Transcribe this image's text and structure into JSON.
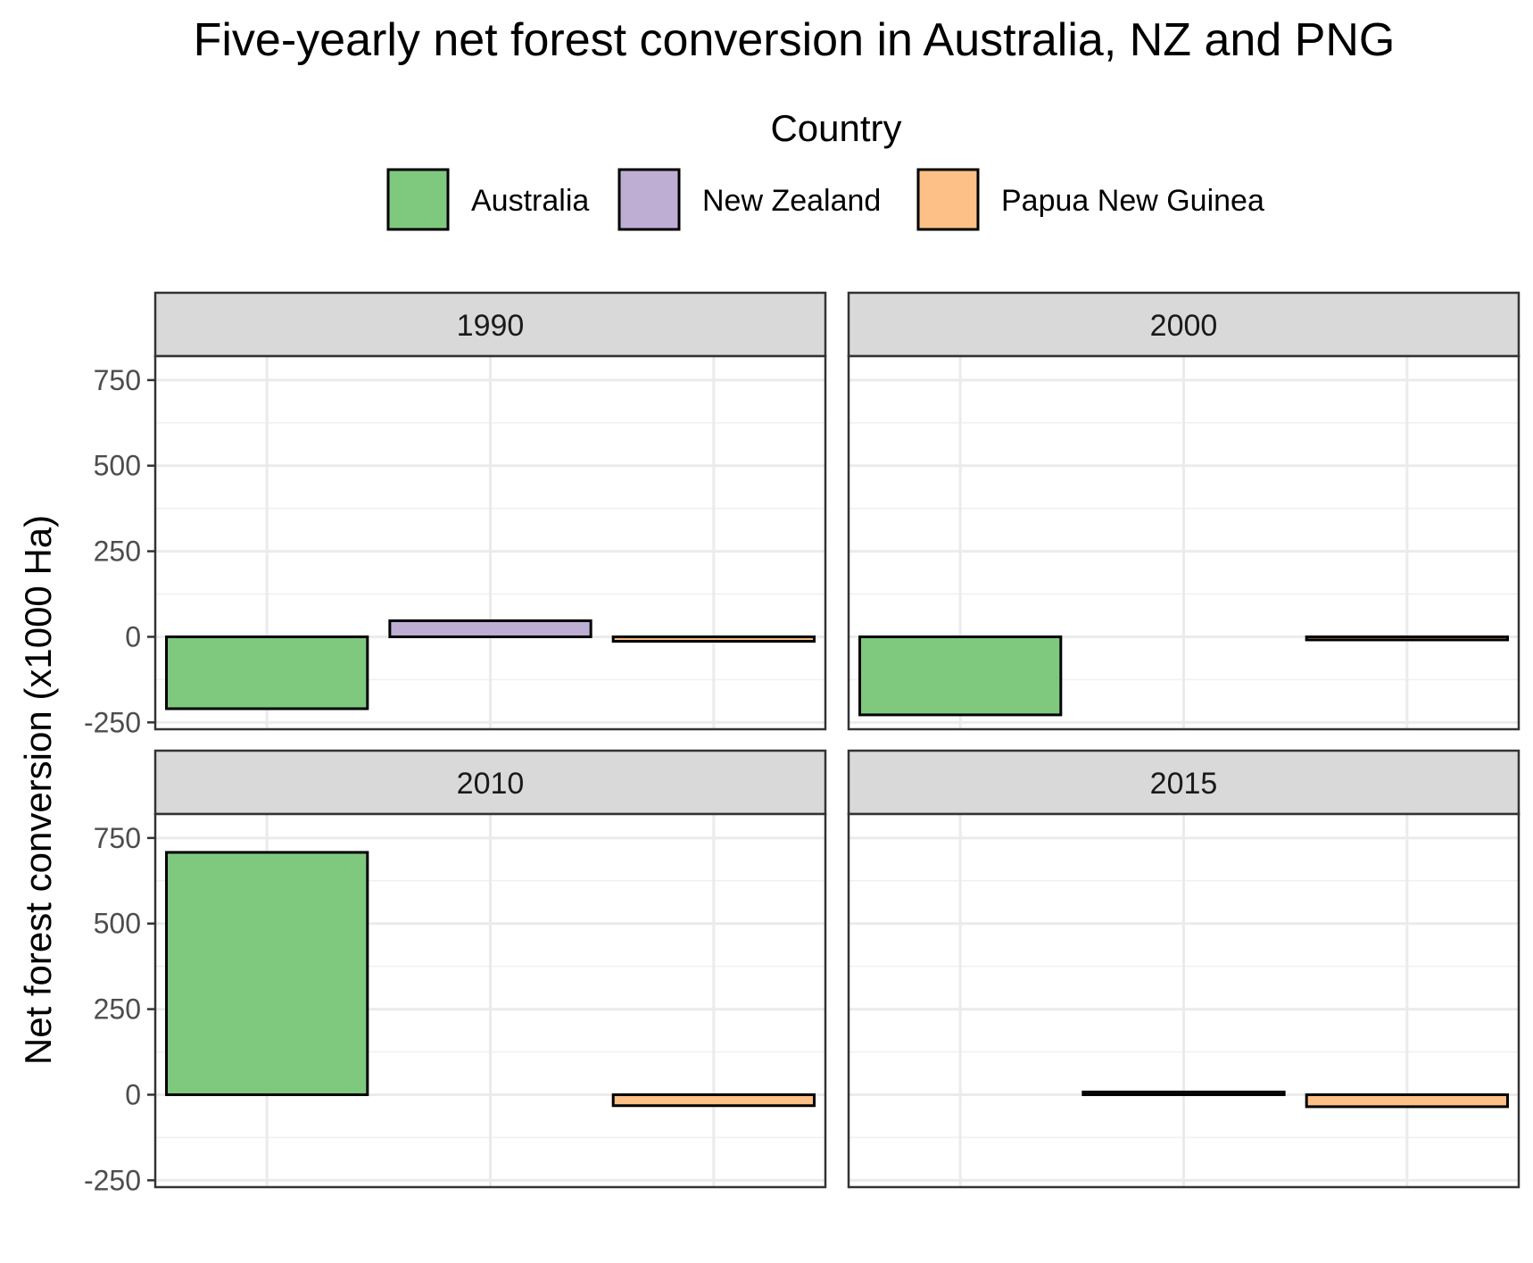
{
  "chart_data": {
    "type": "bar",
    "title": "Five-yearly net forest conversion in Australia, NZ and PNG",
    "xlabel": "",
    "ylabel": "Net forest conversion (x1000 Ha)",
    "ylim": [
      -270,
      820
    ],
    "yticks": [
      -250,
      0,
      250,
      500,
      750
    ],
    "grid": true,
    "legend": {
      "title": "Country",
      "position": "top",
      "entries": [
        {
          "name": "Australia",
          "color": "#7fc97f"
        },
        {
          "name": "New Zealand",
          "color": "#beaed4"
        },
        {
          "name": "Papua New Guinea",
          "color": "#fdc086"
        }
      ]
    },
    "categories": [
      "Australia",
      "New Zealand",
      "Papua New Guinea"
    ],
    "panels": [
      {
        "label": "1990",
        "values": [
          -210,
          47,
          -13
        ]
      },
      {
        "label": "2000",
        "values": [
          -228,
          0,
          -9
        ]
      },
      {
        "label": "2010",
        "values": [
          708,
          0,
          -32
        ]
      },
      {
        "label": "2015",
        "values": [
          0,
          8,
          -35
        ]
      }
    ]
  }
}
